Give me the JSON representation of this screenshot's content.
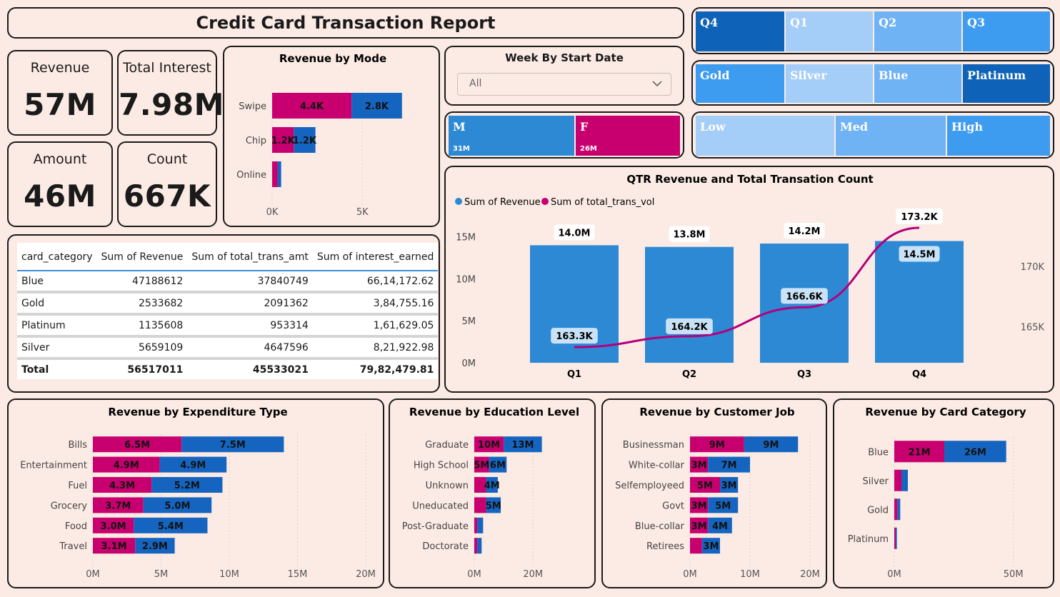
{
  "title": "Credit Card Transaction Report",
  "kpis": {
    "revenue": {
      "label": "Revenue",
      "value": "57M"
    },
    "interest": {
      "label": "Total Interest",
      "value": "7.98M"
    },
    "amount": {
      "label": "Amount",
      "value": "46M"
    },
    "count": {
      "label": "Count",
      "value": "667K"
    }
  },
  "week_slicer": {
    "title": "Week By Start Date",
    "value": "All"
  },
  "quarter_slicer": [
    "Q4",
    "Q1",
    "Q2",
    "Q3"
  ],
  "card_slicer": [
    "Gold",
    "Silver",
    "Blue",
    "Platinum"
  ],
  "gender_slicer": {
    "items": [
      {
        "label": "M",
        "sub": "31M"
      },
      {
        "label": "F",
        "sub": "26M"
      }
    ]
  },
  "income_slicer": [
    "Low",
    "Med",
    "High"
  ],
  "colors": {
    "male": "#1565c0",
    "female": "#c8006f",
    "bar": "#2d89d4",
    "line": "#b3007a",
    "selected": "#0e62b8",
    "light": "#a4cdf8",
    "mid": "#6fb3f5"
  },
  "table": {
    "headers": [
      "card_category",
      "Sum of Revenue",
      "Sum of total_trans_amt",
      "Sum of interest_earned"
    ],
    "rows": [
      [
        "Blue",
        "47188612",
        "37840749",
        "66,14,172.62"
      ],
      [
        "Gold",
        "2533682",
        "2091362",
        "3,84,755.16"
      ],
      [
        "Platinum",
        "1135608",
        "953314",
        "1,61,629.05"
      ],
      [
        "Silver",
        "5659109",
        "4647596",
        "8,21,922.98"
      ]
    ],
    "total": [
      "Total",
      "56517011",
      "45533021",
      "79,82,479.81"
    ]
  },
  "chart_data": [
    {
      "id": "mode",
      "type": "bar",
      "title": "Revenue by Mode",
      "categories": [
        "Swipe",
        "Chip",
        "Online"
      ],
      "series": [
        {
          "values": [
            4.4,
            1.2,
            0.3
          ],
          "labels": [
            "4.4K",
            "1.2K",
            ""
          ]
        },
        {
          "values": [
            2.8,
            1.2,
            0.2
          ],
          "labels": [
            "2.8K",
            "1.2K",
            ""
          ]
        }
      ],
      "xlim": [
        0,
        8
      ],
      "ticks": [
        0,
        5
      ],
      "tick_labels": [
        "0K",
        "5K"
      ],
      "unit": "K",
      "grid": true
    },
    {
      "id": "qtr",
      "type": "bar+line",
      "title": "QTR Revenue and Total Transation Count",
      "categories": [
        "Q1",
        "Q2",
        "Q3",
        "Q4"
      ],
      "series": [
        {
          "name": "Sum of Revenue",
          "values": [
            14.0,
            13.8,
            14.2,
            14.5
          ],
          "labels": [
            "14.0M",
            "13.8M",
            "14.2M",
            "14.5M"
          ]
        },
        {
          "name": "Sum of total_trans_vol",
          "values": [
            163.3,
            164.2,
            166.6,
            173.2
          ],
          "labels": [
            "163.3K",
            "164.2K",
            "166.6K",
            "173.2K"
          ]
        }
      ],
      "ylim_left": [
        0,
        16.5
      ],
      "left_ticks": [
        "0M",
        "5M",
        "10M",
        "15M"
      ],
      "ylim_right": [
        162,
        173.5
      ],
      "right_ticks": [
        165,
        170
      ],
      "right_tick_labels": [
        "165K",
        "170K"
      ],
      "legend_position": "top-left"
    },
    {
      "id": "exp",
      "type": "bar",
      "title": "Revenue by Expenditure Type",
      "categories": [
        "Bills",
        "Entertainment",
        "Fuel",
        "Grocery",
        "Food",
        "Travel"
      ],
      "series": [
        {
          "values": [
            6.5,
            4.9,
            4.3,
            3.7,
            3.0,
            3.1
          ],
          "labels": [
            "6.5M",
            "4.9M",
            "4.3M",
            "3.7M",
            "3.0M",
            "3.1M"
          ]
        },
        {
          "values": [
            7.5,
            4.9,
            5.2,
            5.0,
            5.4,
            2.9
          ],
          "labels": [
            "7.5M",
            "4.9M",
            "5.2M",
            "5.0M",
            "5.4M",
            "2.9M"
          ]
        }
      ],
      "xlim": [
        0,
        20
      ],
      "ticks": [
        0,
        5,
        10,
        15,
        20
      ],
      "tick_labels": [
        "0M",
        "5M",
        "10M",
        "15M",
        "20M"
      ],
      "grid": true
    },
    {
      "id": "edu",
      "type": "bar",
      "title": "Revenue by Education Level",
      "categories": [
        "Graduate",
        "High School",
        "Unknown",
        "Uneducated",
        "Post-Graduate",
        "Doctorate"
      ],
      "series": [
        {
          "values": [
            10,
            5,
            4,
            4,
            1,
            1
          ],
          "labels": [
            "10M",
            "5M",
            "",
            "",
            "",
            ""
          ]
        },
        {
          "values": [
            13,
            6,
            4,
            5,
            2,
            1.5
          ],
          "labels": [
            "13M",
            "6M",
            "4M",
            "5M",
            "",
            ""
          ]
        }
      ],
      "xlim": [
        0,
        35
      ],
      "ticks": [
        0,
        20
      ],
      "tick_labels": [
        "0M",
        "20M"
      ],
      "grid": true
    },
    {
      "id": "job",
      "type": "bar",
      "title": "Revenue by Customer Job",
      "categories": [
        "Businessman",
        "White-collar",
        "Selfemployeed",
        "Govt",
        "Blue-collar",
        "Retirees"
      ],
      "series": [
        {
          "values": [
            9,
            3,
            5,
            3,
            3,
            2
          ],
          "labels": [
            "9M",
            "3M",
            "5M",
            "3M",
            "3M",
            ""
          ]
        },
        {
          "values": [
            9,
            7,
            3,
            5,
            4,
            3
          ],
          "labels": [
            "9M",
            "7M",
            "3M",
            "5M",
            "4M",
            "3M"
          ]
        }
      ],
      "xlim": [
        0,
        20
      ],
      "ticks": [
        0,
        10,
        20
      ],
      "tick_labels": [
        "0M",
        "10M",
        "20M"
      ],
      "grid": true
    },
    {
      "id": "card",
      "type": "bar",
      "title": "Revenue by Card Category",
      "categories": [
        "Blue",
        "Silver",
        "Gold",
        "Platinum"
      ],
      "series": [
        {
          "values": [
            21,
            3,
            1.3,
            0.6
          ],
          "labels": [
            "21M",
            "",
            "",
            ""
          ]
        },
        {
          "values": [
            26,
            2.7,
            1.2,
            0.5
          ],
          "labels": [
            "26M",
            "",
            "",
            ""
          ]
        }
      ],
      "xlim": [
        0,
        60
      ],
      "ticks": [
        0,
        50
      ],
      "tick_labels": [
        "0M",
        "50M"
      ],
      "grid": true
    }
  ]
}
